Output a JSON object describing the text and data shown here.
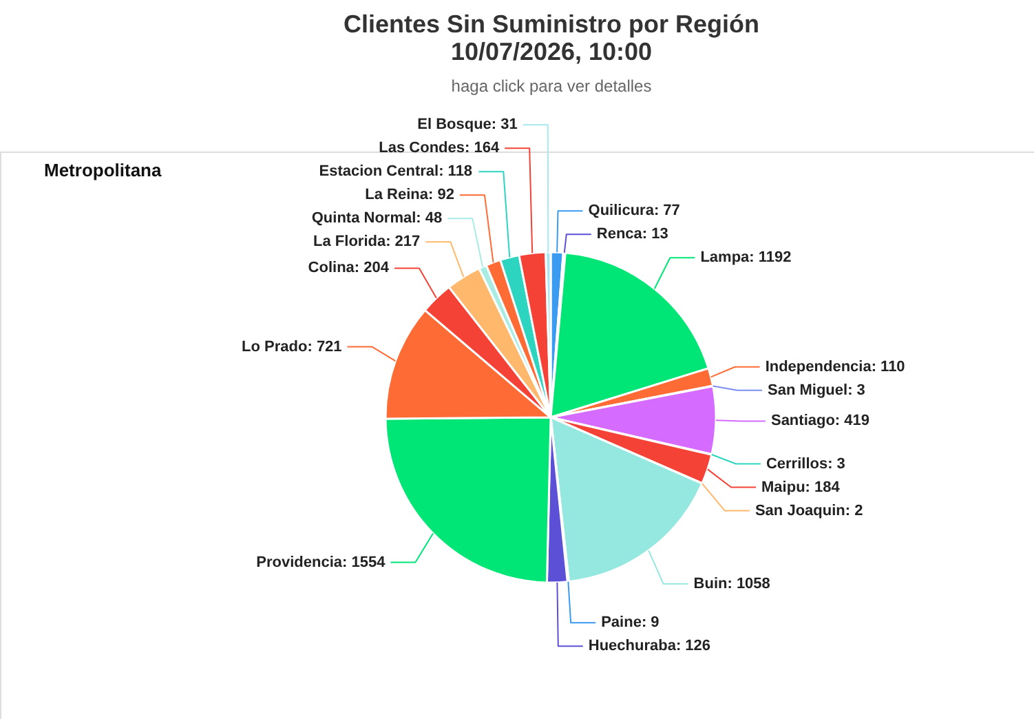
{
  "chart_data": {
    "type": "pie",
    "title": "Clientes Sin Suministro por Región\n10/07/2026, 10:00",
    "subtitle": "haga click para ver detalles",
    "annotations": [
      "Metropolitana"
    ],
    "categories": [
      "Quilicura",
      "Renca",
      "Lampa",
      "Independencia",
      "San Miguel",
      "Santiago",
      "Cerrillos",
      "Maipu",
      "San Joaquin",
      "Buin",
      "Paine",
      "Huechuraba",
      "Providencia",
      "Lo Prado",
      "Colina",
      "La Florida",
      "Quinta Normal",
      "La Reina",
      "Estacion Central",
      "Las Condes",
      "El Bosque"
    ],
    "values": [
      77,
      13,
      1192,
      110,
      3,
      419,
      3,
      184,
      2,
      1058,
      9,
      126,
      1554,
      721,
      204,
      217,
      48,
      92,
      118,
      164,
      31
    ],
    "colors": [
      "#3a9bf0",
      "#5b50d6",
      "#00e676",
      "#ff6b35",
      "#7b8ff0",
      "#d66cff",
      "#2dd4bf",
      "#f44336",
      "#ffb86c",
      "#95e8df",
      "#3a9bf0",
      "#5b50d6",
      "#00e676",
      "#ff6b35",
      "#f44336",
      "#ffb86c",
      "#a8ece4",
      "#ff6b35",
      "#2dd4bf",
      "#f44336",
      "#a8e6f0"
    ],
    "value_labels": [
      ": 77",
      ": 13",
      ": 1192",
      ": 110",
      ": 3",
      ": 419",
      ": 3",
      ": 184",
      ": 2",
      ": 1058",
      ": 9",
      ": 126",
      ": 1554",
      ": 721",
      ": 204",
      ": 217",
      ": 48",
      ": 92",
      ": 118",
      ": 164",
      ": 31"
    ]
  }
}
